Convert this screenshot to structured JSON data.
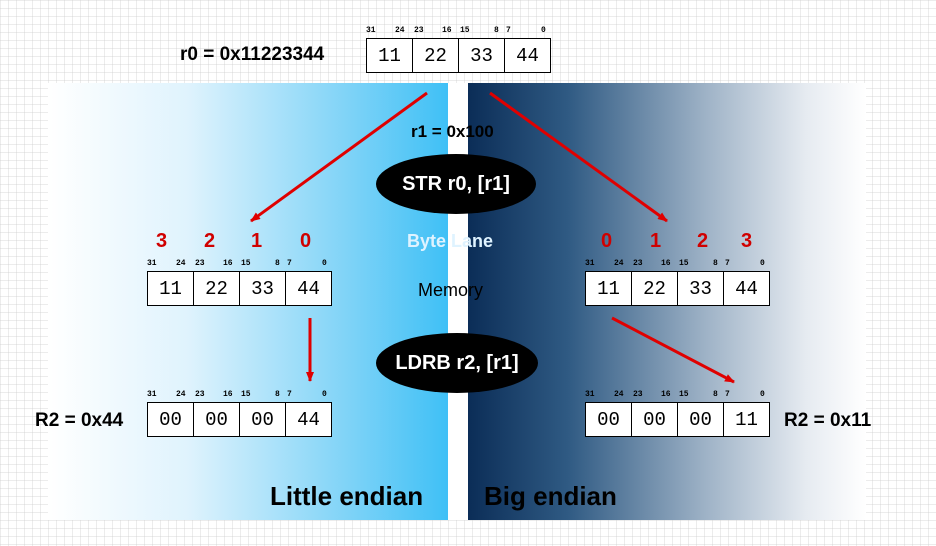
{
  "r0_label": "r0 =  0x11223344",
  "r1_label": "r1 = 0x100",
  "str_instruction": "STR r0, [r1]",
  "ldrb_instruction": "LDRB r2, [r1]",
  "byte_lane_label": "Byte Lane",
  "memory_label": "Memory",
  "little_endian_label": "Little endian",
  "big_endian_label": "Big endian",
  "r2_little_label": "R2 = 0x44",
  "r2_big_label": "R2 = 0x11",
  "bit_labels": [
    "31",
    "24",
    "23",
    "16",
    "15",
    "8",
    "7",
    "0"
  ],
  "r0_bytes": [
    "11",
    "22",
    "33",
    "44"
  ],
  "memory_little_bytes": [
    "11",
    "22",
    "33",
    "44"
  ],
  "memory_big_bytes": [
    "11",
    "22",
    "33",
    "44"
  ],
  "r2_little_bytes": [
    "00",
    "00",
    "00",
    "44"
  ],
  "r2_big_bytes": [
    "00",
    "00",
    "00",
    "11"
  ],
  "lanes_little": [
    "3",
    "2",
    "1",
    "0"
  ],
  "lanes_big": [
    "0",
    "1",
    "2",
    "3"
  ],
  "colors": {
    "arrow": "#e00000",
    "lane_number": "#d00000",
    "little_endian_bg": "#3fc0f6",
    "big_endian_bg": "#0b2d57"
  }
}
